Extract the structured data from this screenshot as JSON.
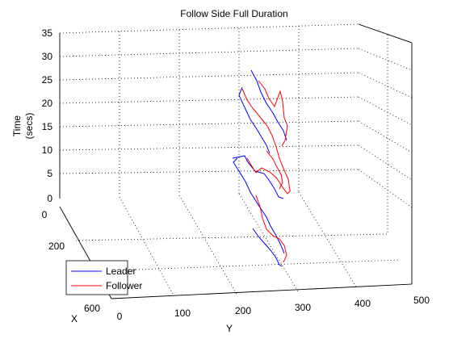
{
  "chart_data": {
    "type": "line",
    "title": "Follow Side Full Duration",
    "xlabel": "X",
    "ylabel": "Y",
    "zlabel": [
      "Time",
      "(secs)"
    ],
    "x_ticks": [
      "0",
      "200",
      "600"
    ],
    "y_ticks": [
      "0",
      "100",
      "200",
      "300",
      "400",
      "500"
    ],
    "z_ticks": [
      "0",
      "5",
      "10",
      "15",
      "20",
      "25",
      "30",
      "35"
    ],
    "z_range": [
      0,
      35
    ],
    "grid": true,
    "legend_position": "bottom-left",
    "series": [
      {
        "name": "Leader",
        "color": "#0000ff"
      },
      {
        "name": "Follower",
        "color": "#ff0000"
      }
    ]
  }
}
